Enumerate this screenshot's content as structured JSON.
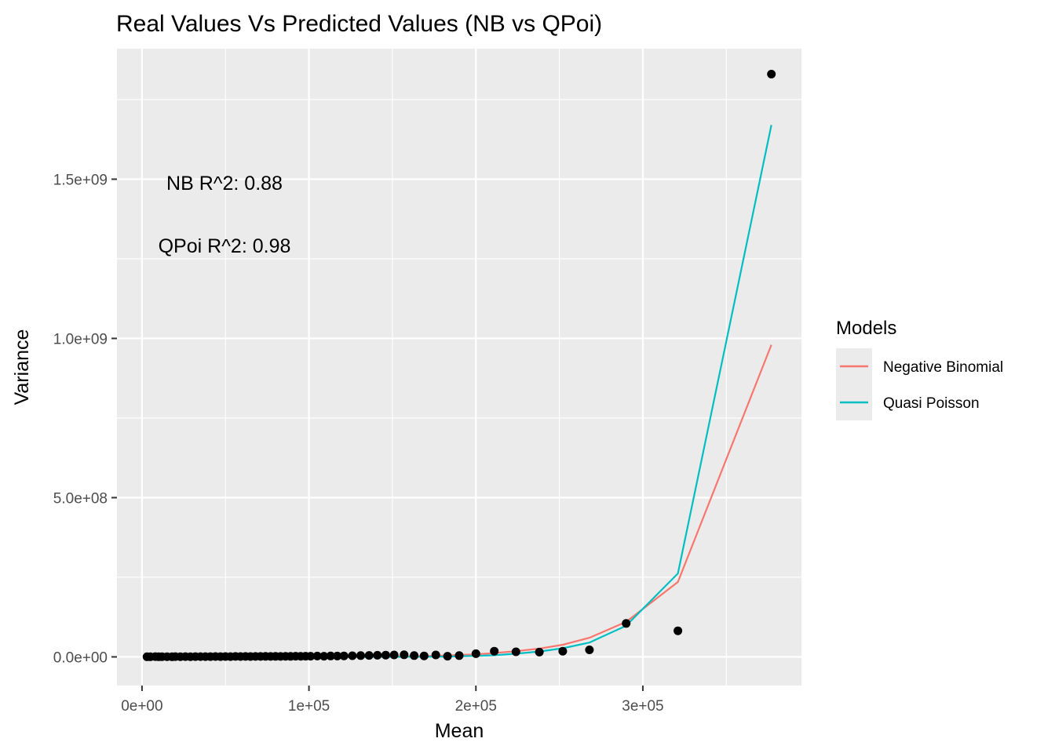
{
  "chart_data": {
    "type": "scatter",
    "title": "Real Values Vs Predicted Values (NB vs QPoi)",
    "xlabel": "Mean",
    "ylabel": "Variance",
    "xlim": [
      -15000,
      395000
    ],
    "ylim": [
      -90000000,
      1910000000
    ],
    "x_ticks": [
      0,
      100000,
      200000,
      300000
    ],
    "x_tick_labels": [
      "0e+00",
      "1e+05",
      "2e+05",
      "3e+05"
    ],
    "y_ticks": [
      0,
      500000000,
      1000000000,
      1500000000
    ],
    "y_tick_labels": [
      "0.0e+00",
      "5.0e+08",
      "1.0e+09",
      "1.5e+09"
    ],
    "grid": true,
    "legend": {
      "title": "Models",
      "placement": "right",
      "entries": [
        "Negative Binomial",
        "Quasi Poisson"
      ]
    },
    "annotations": [
      "NB R^2:  0.88",
      "QPoi R^2:  0.98"
    ],
    "colors": {
      "panel": "#ebebeb",
      "grid": "#ffffff",
      "points": "#000000",
      "negative_binomial": "#f8766d",
      "quasi_poisson": "#00bfc4"
    },
    "points": {
      "x": [
        3000,
        5000,
        8000,
        10000,
        12000,
        15000,
        18000,
        20000,
        23000,
        26000,
        29000,
        32000,
        35000,
        38000,
        41000,
        44000,
        47000,
        50000,
        53000,
        56000,
        59000,
        62000,
        65000,
        68000,
        71000,
        74000,
        77000,
        80000,
        83000,
        86000,
        89000,
        92000,
        95000,
        98000,
        101000,
        105000,
        109000,
        113000,
        117000,
        121000,
        126000,
        131000,
        136000,
        141000,
        146000,
        151000,
        157000,
        163000,
        169000,
        176000,
        183000,
        190000,
        200000,
        211000,
        224000,
        238000,
        252000,
        268000,
        290000,
        321000,
        377000
      ],
      "y": [
        500000,
        300000,
        800000,
        500000,
        600000,
        700000,
        500000,
        800000,
        600000,
        900000,
        700000,
        800000,
        1000000,
        800000,
        900000,
        1100000,
        1000000,
        1200000,
        1000000,
        1300000,
        1100000,
        1400000,
        1200000,
        1500000,
        1300000,
        1600000,
        1400000,
        1700000,
        1500000,
        1800000,
        1600000,
        2000000,
        1800000,
        2200000,
        2000000,
        2500000,
        2200000,
        2800000,
        2600000,
        3000000,
        3500000,
        4000000,
        4500000,
        5000000,
        5500000,
        6000000,
        6500000,
        4000000,
        3000000,
        6000000,
        2000000,
        4000000,
        10000000,
        18000000,
        16000000,
        15000000,
        18000000,
        22000000,
        105000000,
        82000000,
        1830000000
      ]
    },
    "series": [
      {
        "name": "Negative Binomial",
        "x": [
          3000,
          30000,
          60000,
          90000,
          120000,
          150000,
          180000,
          200000,
          211000,
          224000,
          238000,
          252000,
          268000,
          290000,
          321000,
          377000
        ],
        "y": [
          -5000000,
          -4500000,
          -4000000,
          -3000000,
          -1000000,
          1000000,
          4000000,
          8000000,
          12000000,
          18000000,
          26000000,
          38000000,
          60000000,
          110000000,
          235000000,
          980000000
        ]
      },
      {
        "name": "Quasi Poisson",
        "x": [
          3000,
          30000,
          60000,
          90000,
          120000,
          150000,
          180000,
          200000,
          211000,
          224000,
          238000,
          252000,
          268000,
          290000,
          321000,
          377000
        ],
        "y": [
          -2000000,
          -1800000,
          -1500000,
          -1000000,
          -500000,
          0,
          1000000,
          3000000,
          5000000,
          10000000,
          17000000,
          27000000,
          45000000,
          98000000,
          262000000,
          1670000000
        ]
      }
    ]
  }
}
